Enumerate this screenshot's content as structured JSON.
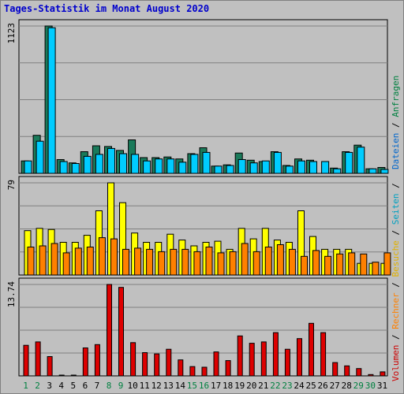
{
  "title": "Tages-Statistik im Monat August 2020",
  "right_labels": {
    "top": [
      {
        "text": "Dateien",
        "color": "#0066cc"
      },
      {
        "text": " / ",
        "color": "#000000"
      },
      {
        "text": "Anfragen",
        "color": "#008040"
      }
    ],
    "bottom": [
      {
        "text": "Volumen",
        "color": "#cc0000"
      },
      {
        "text": " / ",
        "color": "#000000"
      },
      {
        "text": "Rechner",
        "color": "#ff8000"
      },
      {
        "text": " / ",
        "color": "#000000"
      },
      {
        "text": "Besuche",
        "color": "#e0b000"
      },
      {
        "text": " / ",
        "color": "#000000"
      },
      {
        "text": "Seiten",
        "color": "#00a0c0"
      },
      {
        "text": " / ",
        "color": "#000000"
      }
    ]
  },
  "colors": {
    "background": "#c0c0c0",
    "grid": "#808080",
    "weekend_label": "#008040",
    "weekday_label": "#000000"
  },
  "chart_data": [
    {
      "type": "bar",
      "panel": "top",
      "categories": [
        "1",
        "2",
        "3",
        "4",
        "5",
        "6",
        "7",
        "8",
        "9",
        "10",
        "11",
        "12",
        "13",
        "14",
        "15",
        "16",
        "17",
        "18",
        "19",
        "20",
        "21",
        "22",
        "23",
        "24",
        "25",
        "26",
        "27",
        "28",
        "29",
        "30",
        "31"
      ],
      "weekend_days": [
        "1",
        "2",
        "8",
        "9",
        "15",
        "16",
        "22",
        "23",
        "29",
        "30"
      ],
      "ytick_label": "1123",
      "ylim": [
        0,
        1123
      ],
      "series": [
        {
          "name": "Anfragen",
          "color": "#1a7a5a",
          "values": [
            95,
            290,
            1123,
            105,
            80,
            165,
            210,
            205,
            175,
            255,
            120,
            120,
            125,
            110,
            150,
            195,
            55,
            65,
            155,
            100,
            90,
            165,
            60,
            110,
            100,
            0,
            40,
            165,
            215,
            35,
            45
          ]
        },
        {
          "name": "Dateien",
          "color": "#00ccff",
          "values": [
            95,
            245,
            1110,
            90,
            75,
            130,
            145,
            190,
            150,
            145,
            95,
            110,
            110,
            85,
            145,
            160,
            55,
            60,
            105,
            80,
            95,
            160,
            55,
            95,
            90,
            90,
            35,
            160,
            200,
            35,
            30
          ]
        }
      ]
    },
    {
      "type": "bar",
      "panel": "middle",
      "categories": [
        "1",
        "2",
        "3",
        "4",
        "5",
        "6",
        "7",
        "8",
        "9",
        "10",
        "11",
        "12",
        "13",
        "14",
        "15",
        "16",
        "17",
        "18",
        "19",
        "20",
        "21",
        "22",
        "23",
        "24",
        "25",
        "26",
        "27",
        "28",
        "29",
        "30",
        "31"
      ],
      "ytick_label": "79",
      "ylim": [
        0,
        79
      ],
      "series": [
        {
          "name": "Seiten",
          "color": "#00ccff",
          "values": [
            0,
            0,
            0,
            0,
            0,
            0,
            0,
            0,
            0,
            0,
            0,
            0,
            0,
            0,
            0,
            0,
            0,
            0,
            0,
            0,
            0,
            0,
            0,
            0,
            0,
            0,
            0,
            0,
            0,
            0,
            0
          ]
        },
        {
          "name": "Besuche",
          "color": "#ffff00",
          "values": [
            38,
            40,
            39,
            28,
            28,
            34,
            55,
            79,
            62,
            36,
            28,
            28,
            35,
            30,
            25,
            28,
            29,
            22,
            40,
            31,
            40,
            30,
            28,
            55,
            33,
            22,
            22,
            22,
            10,
            10,
            10
          ]
        },
        {
          "name": "Rechner",
          "color": "#ff8000",
          "values": [
            24,
            25,
            27,
            19,
            23,
            24,
            32,
            31,
            22,
            23,
            22,
            20,
            22,
            22,
            20,
            24,
            19,
            20,
            27,
            20,
            24,
            26,
            22,
            16,
            21,
            16,
            18,
            19,
            18,
            11,
            19
          ]
        }
      ]
    },
    {
      "type": "bar",
      "panel": "bottom",
      "categories": [
        "1",
        "2",
        "3",
        "4",
        "5",
        "6",
        "7",
        "8",
        "9",
        "10",
        "11",
        "12",
        "13",
        "14",
        "15",
        "16",
        "17",
        "18",
        "19",
        "20",
        "21",
        "22",
        "23",
        "24",
        "25",
        "26",
        "27",
        "28",
        "29",
        "30",
        "31"
      ],
      "ytick_label": "13.74",
      "ylim": [
        0,
        13.74
      ],
      "series": [
        {
          "name": "Volumen",
          "color": "#dd0000",
          "values": [
            4.6,
            5.1,
            2.9,
            0.1,
            0.1,
            4.2,
            4.7,
            13.74,
            13.3,
            5.0,
            3.5,
            3.3,
            4.0,
            2.4,
            1.4,
            1.3,
            3.6,
            2.3,
            6.0,
            4.9,
            5.1,
            6.5,
            4.0,
            5.6,
            7.9,
            6.5,
            2.0,
            1.5,
            1.1,
            0.2,
            0.6
          ]
        }
      ]
    }
  ]
}
